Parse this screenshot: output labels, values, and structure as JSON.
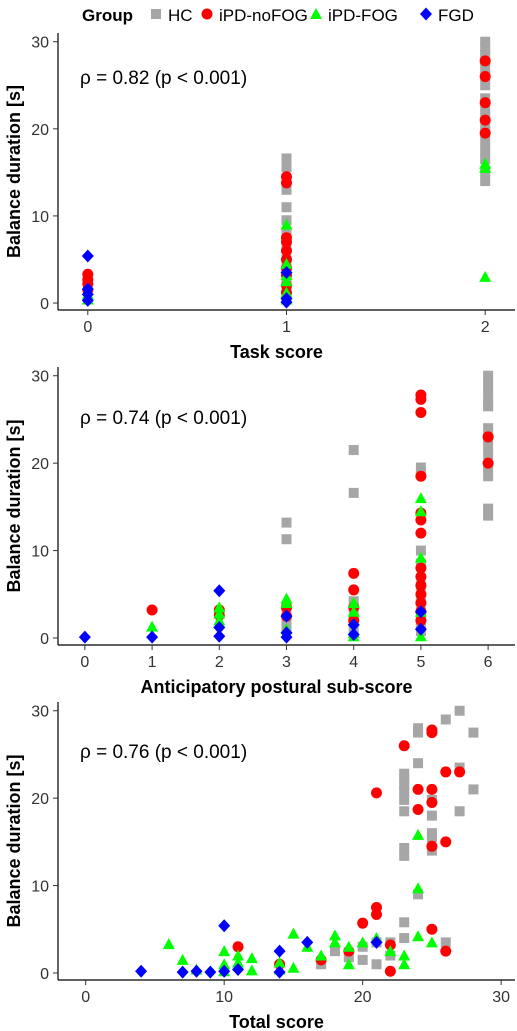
{
  "legend": {
    "title": "Group",
    "items": [
      {
        "label": "HC",
        "shape": "square",
        "color": "#a6a6a6"
      },
      {
        "label": "iPD-noFOG",
        "shape": "circle",
        "color": "#ff0000"
      },
      {
        "label": "iPD-FOG",
        "shape": "triangle",
        "color": "#00ff00"
      },
      {
        "label": "FGD",
        "shape": "diamond",
        "color": "#0000ff"
      }
    ]
  },
  "chart_data": [
    {
      "type": "scatter",
      "xlabel": "Task score",
      "ylabel": "Balance duration [s]",
      "annotation": "ρ = 0.82 (p < 0.001)",
      "xlim": [
        -0.15,
        2.15
      ],
      "ylim": [
        -0.8,
        31
      ],
      "xticks": [
        0,
        1,
        2
      ],
      "yticks": [
        0,
        10,
        20,
        30
      ],
      "series": [
        {
          "name": "HC",
          "points": [
            [
              1,
              16.6
            ],
            [
              1,
              15.6
            ],
            [
              1,
              13
            ],
            [
              1,
              11
            ],
            [
              1,
              9.5
            ],
            [
              1,
              8
            ],
            [
              1,
              6.5
            ],
            [
              1,
              5
            ],
            [
              1,
              4
            ],
            [
              1,
              3
            ],
            [
              1,
              2.2
            ],
            [
              1,
              1.5
            ],
            [
              1,
              0.8
            ],
            [
              2,
              30
            ],
            [
              2,
              29.2
            ],
            [
              2,
              28.5
            ],
            [
              2,
              27.8
            ],
            [
              2,
              27
            ],
            [
              2,
              26
            ],
            [
              2,
              25
            ],
            [
              2,
              23.5
            ],
            [
              2,
              22.5
            ],
            [
              2,
              21.5
            ],
            [
              2,
              20.5
            ],
            [
              2,
              19.5
            ],
            [
              2,
              18.5
            ],
            [
              2,
              17.5
            ],
            [
              2,
              16.5
            ],
            [
              2,
              15
            ],
            [
              2,
              14
            ]
          ]
        },
        {
          "name": "iPD-noFOG",
          "points": [
            [
              0,
              3.3
            ],
            [
              0,
              2.7
            ],
            [
              0,
              2.2
            ],
            [
              0,
              1.5
            ],
            [
              1,
              14.5
            ],
            [
              1,
              13.8
            ],
            [
              1,
              7.5
            ],
            [
              1,
              7
            ],
            [
              1,
              6
            ],
            [
              1,
              5
            ],
            [
              1,
              4
            ],
            [
              1,
              3.2
            ],
            [
              1,
              2
            ],
            [
              1,
              1.2
            ],
            [
              2,
              27.8
            ],
            [
              2,
              26
            ],
            [
              2,
              23
            ],
            [
              2,
              21
            ],
            [
              2,
              19.5
            ]
          ]
        },
        {
          "name": "iPD-FOG",
          "points": [
            [
              0,
              1
            ],
            [
              0,
              0.4
            ],
            [
              1,
              9
            ],
            [
              1,
              4.5
            ],
            [
              1,
              3.2
            ],
            [
              1,
              2.5
            ],
            [
              1,
              1.2
            ],
            [
              1,
              0.4
            ],
            [
              2,
              16
            ],
            [
              2,
              15.5
            ],
            [
              2,
              3
            ]
          ]
        },
        {
          "name": "FGD",
          "points": [
            [
              0,
              5.4
            ],
            [
              0,
              1.6
            ],
            [
              0,
              1
            ],
            [
              0,
              0.3
            ],
            [
              1,
              3.5
            ],
            [
              1,
              0.5
            ],
            [
              1,
              0.1
            ]
          ]
        }
      ]
    },
    {
      "type": "scatter",
      "xlabel": "Anticipatory postural sub-score",
      "ylabel": "Balance duration [s]",
      "annotation": "ρ = 0.74 (p < 0.001)",
      "xlim": [
        -0.4,
        6.4
      ],
      "ylim": [
        -0.8,
        31
      ],
      "xticks": [
        0,
        1,
        2,
        3,
        4,
        5,
        6
      ],
      "yticks": [
        0,
        10,
        20,
        30
      ],
      "series": [
        {
          "name": "HC",
          "points": [
            [
              3,
              13.2
            ],
            [
              3,
              11.3
            ],
            [
              3,
              3.5
            ],
            [
              3,
              2
            ],
            [
              3,
              1
            ],
            [
              4,
              21.5
            ],
            [
              4,
              16.6
            ],
            [
              4,
              4.2
            ],
            [
              4,
              3
            ],
            [
              4,
              2
            ],
            [
              4,
              1
            ],
            [
              5,
              19.5
            ],
            [
              5,
              18.8
            ],
            [
              5,
              10
            ],
            [
              5,
              8.5
            ],
            [
              5,
              6
            ],
            [
              5,
              4.5
            ],
            [
              5,
              3
            ],
            [
              5,
              2
            ],
            [
              5,
              1.5
            ],
            [
              5,
              0.8
            ],
            [
              6,
              30
            ],
            [
              6,
              29
            ],
            [
              6,
              28
            ],
            [
              6,
              27
            ],
            [
              6,
              26.5
            ],
            [
              6,
              24
            ],
            [
              6,
              23
            ],
            [
              6,
              22
            ],
            [
              6,
              21
            ],
            [
              6,
              19.5
            ],
            [
              6,
              18.5
            ],
            [
              6,
              14.8
            ],
            [
              6,
              14
            ]
          ]
        },
        {
          "name": "iPD-noFOG",
          "points": [
            [
              1,
              3.2
            ],
            [
              2,
              3.2
            ],
            [
              2,
              2.6
            ],
            [
              3,
              3.5
            ],
            [
              3,
              2.5
            ],
            [
              4,
              7.4
            ],
            [
              4,
              5.5
            ],
            [
              4,
              3.5
            ],
            [
              4,
              2
            ],
            [
              5,
              27.8
            ],
            [
              5,
              27.3
            ],
            [
              5,
              25.8
            ],
            [
              5,
              18.5
            ],
            [
              5,
              14.3
            ],
            [
              5,
              13.5
            ],
            [
              5,
              12
            ],
            [
              5,
              8
            ],
            [
              5,
              7
            ],
            [
              5,
              6
            ],
            [
              5,
              5
            ],
            [
              5,
              4
            ],
            [
              5,
              3
            ],
            [
              5,
              2
            ],
            [
              6,
              23
            ],
            [
              6,
              20
            ]
          ]
        },
        {
          "name": "iPD-FOG",
          "points": [
            [
              1,
              1.3
            ],
            [
              2,
              3.5
            ],
            [
              2,
              2.8
            ],
            [
              2,
              2
            ],
            [
              3,
              4.5
            ],
            [
              3,
              4
            ],
            [
              3,
              1
            ],
            [
              4,
              4
            ],
            [
              4,
              3
            ],
            [
              4,
              0.6
            ],
            [
              4,
              0.2
            ],
            [
              5,
              16
            ],
            [
              5,
              14.5
            ],
            [
              5,
              9.2
            ],
            [
              5,
              3
            ],
            [
              5,
              0.2
            ]
          ]
        },
        {
          "name": "FGD",
          "points": [
            [
              0,
              0.1
            ],
            [
              1,
              0.1
            ],
            [
              2,
              5.4
            ],
            [
              2,
              1.2
            ],
            [
              2,
              0.2
            ],
            [
              3,
              2.5
            ],
            [
              3,
              0.6
            ],
            [
              3,
              0.1
            ],
            [
              4,
              1.5
            ],
            [
              4,
              0.4
            ],
            [
              5,
              3
            ],
            [
              5,
              1
            ]
          ]
        }
      ]
    },
    {
      "type": "scatter",
      "xlabel": "Total score",
      "ylabel": "Balance duration [s]",
      "annotation": "ρ = 0.76 (p < 0.001)",
      "xlim": [
        -2,
        31
      ],
      "ylim": [
        -0.8,
        31
      ],
      "xticks": [
        0,
        10,
        20,
        30
      ],
      "yticks": [
        0,
        10,
        20,
        30
      ],
      "series": [
        {
          "name": "HC",
          "points": [
            [
              17,
              1
            ],
            [
              18,
              2.5
            ],
            [
              19,
              1.8
            ],
            [
              20,
              1.5
            ],
            [
              20,
              3
            ],
            [
              21,
              3.5
            ],
            [
              21,
              1
            ],
            [
              22,
              2
            ],
            [
              22,
              3.5
            ],
            [
              23,
              4
            ],
            [
              23,
              5.8
            ],
            [
              23,
              13.4
            ],
            [
              23,
              14.3
            ],
            [
              23,
              18.5
            ],
            [
              23,
              19.8
            ],
            [
              23,
              20.8
            ],
            [
              23,
              21.5
            ],
            [
              23,
              22.2
            ],
            [
              23,
              22.8
            ],
            [
              24,
              9
            ],
            [
              24,
              24
            ],
            [
              24,
              27.5
            ],
            [
              24,
              28
            ],
            [
              25,
              14
            ],
            [
              25,
              15.5
            ],
            [
              25,
              16
            ],
            [
              25,
              18
            ],
            [
              25,
              19.8
            ],
            [
              26,
              29
            ],
            [
              26,
              3.5
            ],
            [
              27,
              30
            ],
            [
              27,
              23.5
            ],
            [
              27,
              18.5
            ],
            [
              28,
              27.5
            ],
            [
              28,
              21
            ]
          ]
        },
        {
          "name": "iPD-noFOG",
          "points": [
            [
              11,
              3
            ],
            [
              14,
              1
            ],
            [
              17,
              1.5
            ],
            [
              19,
              2.5
            ],
            [
              20,
              5.7
            ],
            [
              21,
              7.5
            ],
            [
              21,
              6.7
            ],
            [
              21,
              20.6
            ],
            [
              22,
              3.2
            ],
            [
              22,
              0.2
            ],
            [
              23,
              26
            ],
            [
              24,
              21
            ],
            [
              24,
              18.7
            ],
            [
              25,
              27.5
            ],
            [
              25,
              27.8
            ],
            [
              25,
              21
            ],
            [
              25,
              19.5
            ],
            [
              25,
              14.5
            ],
            [
              25,
              5
            ],
            [
              26,
              23
            ],
            [
              26,
              15
            ],
            [
              26,
              2.5
            ],
            [
              27,
              23
            ]
          ]
        },
        {
          "name": "iPD-FOG",
          "points": [
            [
              6,
              3.3
            ],
            [
              7,
              1.5
            ],
            [
              8,
              0.4
            ],
            [
              10,
              2.5
            ],
            [
              10,
              1
            ],
            [
              10,
              0.2
            ],
            [
              11,
              2
            ],
            [
              11,
              1.2
            ],
            [
              12,
              1.7
            ],
            [
              12,
              0.3
            ],
            [
              14,
              1.2
            ],
            [
              14,
              0.4
            ],
            [
              15,
              4.5
            ],
            [
              15,
              0.6
            ],
            [
              16,
              3
            ],
            [
              17,
              2
            ],
            [
              18,
              4.3
            ],
            [
              18,
              3.5
            ],
            [
              19,
              3
            ],
            [
              19,
              1
            ],
            [
              20,
              3.5
            ],
            [
              21,
              4
            ],
            [
              22,
              2.5
            ],
            [
              23,
              1
            ],
            [
              23,
              2
            ],
            [
              24,
              4.2
            ],
            [
              24,
              9.7
            ],
            [
              24,
              15.8
            ],
            [
              25,
              3.5
            ]
          ]
        },
        {
          "name": "FGD",
          "points": [
            [
              4,
              0.2
            ],
            [
              7,
              0.1
            ],
            [
              8,
              0.2
            ],
            [
              9,
              0.1
            ],
            [
              10,
              0.2
            ],
            [
              10,
              5.4
            ],
            [
              11,
              0.4
            ],
            [
              14,
              2.5
            ],
            [
              14,
              0.1
            ],
            [
              16,
              3.5
            ],
            [
              21,
              3.5
            ]
          ]
        }
      ]
    }
  ]
}
